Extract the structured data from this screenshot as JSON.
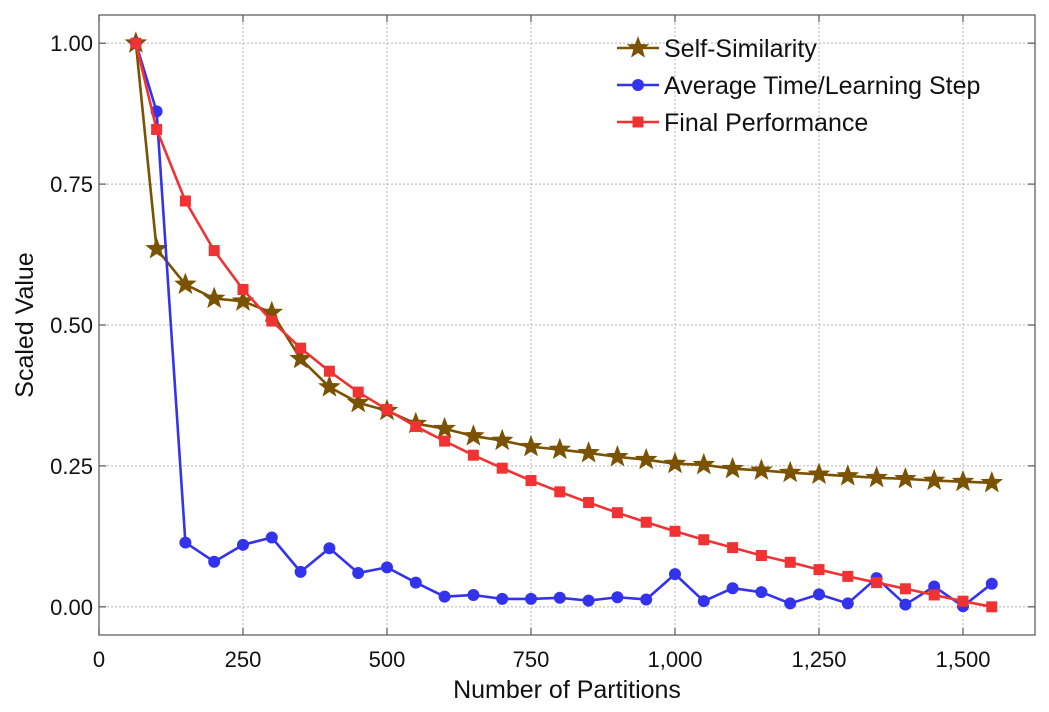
{
  "chart_data": {
    "type": "line",
    "title": "",
    "xlabel": "Number of Partitions",
    "ylabel": "Scaled Value",
    "xlim": [
      0,
      1625
    ],
    "ylim": [
      -0.05,
      1.05
    ],
    "x_ticks": [
      0,
      250,
      500,
      750,
      1000,
      1250,
      1500
    ],
    "x_tick_labels": [
      "0",
      "250",
      "500",
      "750",
      "1,000",
      "1,250",
      "1,500"
    ],
    "y_ticks": [
      0,
      0.25,
      0.5,
      0.75,
      1.0
    ],
    "y_tick_labels": [
      "0.00",
      "0.25",
      "0.50",
      "0.75",
      "1.00"
    ],
    "grid": true,
    "legend_position": "top-right",
    "x": [
      64,
      100,
      150,
      200,
      250,
      300,
      350,
      400,
      450,
      500,
      550,
      600,
      650,
      700,
      750,
      800,
      850,
      900,
      950,
      1000,
      1050,
      1100,
      1150,
      1200,
      1250,
      1300,
      1350,
      1400,
      1450,
      1500,
      1550
    ],
    "series": [
      {
        "name": "Self-Similarity",
        "color": "#7a5200",
        "marker": "star",
        "values": [
          1.0,
          0.635,
          0.572,
          0.547,
          0.542,
          0.522,
          0.44,
          0.39,
          0.362,
          0.348,
          0.325,
          0.316,
          0.303,
          0.295,
          0.284,
          0.279,
          0.273,
          0.266,
          0.261,
          0.254,
          0.252,
          0.245,
          0.242,
          0.238,
          0.235,
          0.232,
          0.229,
          0.227,
          0.224,
          0.222,
          0.22
        ]
      },
      {
        "name": "Average Time/Learning Step",
        "color": "#3333ee",
        "marker": "circle",
        "values": [
          1.0,
          0.879,
          0.114,
          0.08,
          0.11,
          0.123,
          0.062,
          0.104,
          0.06,
          0.07,
          0.043,
          0.018,
          0.021,
          0.014,
          0.014,
          0.016,
          0.011,
          0.017,
          0.013,
          0.058,
          0.01,
          0.033,
          0.026,
          0.006,
          0.022,
          0.006,
          0.051,
          0.004,
          0.036,
          0.001,
          0.041
        ]
      },
      {
        "name": "Final Performance",
        "color": "#f03232",
        "marker": "square",
        "values": [
          1.0,
          0.847,
          0.72,
          0.632,
          0.563,
          0.507,
          0.459,
          0.418,
          0.381,
          0.35,
          0.32,
          0.294,
          0.269,
          0.246,
          0.224,
          0.204,
          0.185,
          0.167,
          0.15,
          0.134,
          0.119,
          0.105,
          0.091,
          0.079,
          0.066,
          0.054,
          0.043,
          0.032,
          0.021,
          0.01,
          0.0
        ]
      }
    ]
  }
}
